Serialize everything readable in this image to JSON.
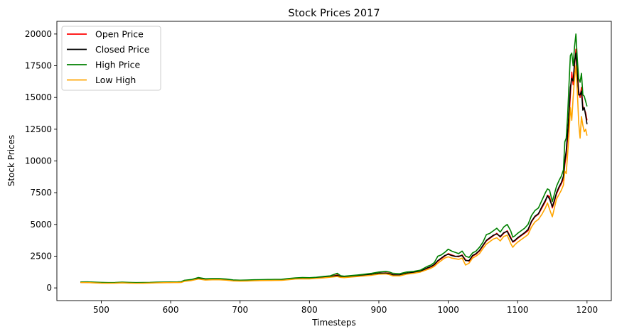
{
  "chart_data": {
    "type": "line",
    "title": "Stock Prices 2017",
    "xlabel": "Timesteps",
    "ylabel": "Stock Prices",
    "xlim": [
      436,
      1235
    ],
    "ylim": [
      -1000,
      21000
    ],
    "xticks": [
      500,
      600,
      700,
      800,
      900,
      1000,
      1100,
      1200
    ],
    "yticks": [
      0,
      2500,
      5000,
      7500,
      10000,
      12500,
      15000,
      17500,
      20000
    ],
    "grid": false,
    "legend_position": "upper-left",
    "x": [
      470,
      480,
      490,
      500,
      510,
      520,
      530,
      540,
      550,
      560,
      570,
      580,
      590,
      600,
      610,
      615,
      620,
      630,
      640,
      650,
      660,
      670,
      680,
      690,
      700,
      710,
      720,
      730,
      740,
      750,
      760,
      770,
      780,
      790,
      800,
      810,
      820,
      830,
      840,
      845,
      850,
      860,
      870,
      880,
      890,
      900,
      910,
      915,
      920,
      930,
      940,
      950,
      960,
      970,
      975,
      980,
      985,
      990,
      995,
      1000,
      1005,
      1010,
      1015,
      1020,
      1025,
      1030,
      1035,
      1040,
      1045,
      1050,
      1055,
      1060,
      1065,
      1070,
      1075,
      1080,
      1085,
      1090,
      1093,
      1096,
      1100,
      1105,
      1110,
      1115,
      1120,
      1125,
      1130,
      1135,
      1140,
      1143,
      1146,
      1150,
      1153,
      1156,
      1160,
      1163,
      1166,
      1168,
      1170,
      1172,
      1174,
      1176,
      1178,
      1180,
      1182,
      1184,
      1186,
      1188,
      1190,
      1192,
      1194,
      1196,
      1198,
      1200
    ],
    "series": [
      {
        "name": "Open Price",
        "color": "#ff0000",
        "values": [
          440,
          445,
          420,
          400,
          390,
          395,
          420,
          400,
          390,
          390,
          400,
          420,
          430,
          440,
          445,
          450,
          550,
          610,
          760,
          650,
          670,
          680,
          650,
          580,
          560,
          570,
          590,
          600,
          610,
          615,
          620,
          680,
          730,
          760,
          740,
          780,
          830,
          880,
          1020,
          900,
          850,
          900,
          950,
          1000,
          1050,
          1150,
          1180,
          1150,
          1050,
          1000,
          1150,
          1200,
          1300,
          1550,
          1650,
          1800,
          2100,
          2300,
          2500,
          2700,
          2600,
          2500,
          2450,
          2600,
          2200,
          2100,
          2500,
          2650,
          2900,
          3300,
          3700,
          3900,
          4100,
          4300,
          4000,
          4300,
          4500,
          4000,
          3600,
          3700,
          3900,
          4100,
          4300,
          4500,
          5200,
          5600,
          5800,
          6300,
          6800,
          7300,
          7200,
          6300,
          6800,
          7400,
          7900,
          8200,
          8600,
          9700,
          10500,
          11800,
          13200,
          15200,
          17000,
          16000,
          17500,
          18800,
          17200,
          15500,
          15000,
          15800,
          14300,
          14100,
          13800,
          13200
        ]
      },
      {
        "name": "Closed Price",
        "color": "#000000",
        "values": [
          445,
          440,
          415,
          395,
          390,
          400,
          415,
          395,
          390,
          395,
          405,
          425,
          435,
          440,
          450,
          455,
          560,
          620,
          740,
          660,
          675,
          675,
          640,
          575,
          565,
          575,
          595,
          605,
          612,
          618,
          625,
          690,
          740,
          750,
          745,
          790,
          840,
          890,
          980,
          880,
          860,
          910,
          960,
          1010,
          1060,
          1160,
          1170,
          1120,
          1030,
          1020,
          1160,
          1220,
          1320,
          1580,
          1680,
          1850,
          2150,
          2350,
          2550,
          2650,
          2550,
          2480,
          2500,
          2550,
          2150,
          2150,
          2550,
          2700,
          2950,
          3350,
          3750,
          3950,
          4150,
          4250,
          4050,
          4350,
          4450,
          3900,
          3650,
          3750,
          3950,
          4150,
          4350,
          4600,
          5250,
          5650,
          5850,
          6400,
          6900,
          7250,
          7000,
          6400,
          6900,
          7500,
          8000,
          8300,
          8800,
          10000,
          10800,
          12200,
          13800,
          15800,
          16500,
          16300,
          17800,
          18500,
          16800,
          15200,
          15200,
          15500,
          14000,
          14200,
          13600,
          12900
        ]
      },
      {
        "name": "High Price",
        "color": "#008000",
        "values": [
          470,
          475,
          450,
          430,
          420,
          425,
          450,
          430,
          420,
          425,
          430,
          450,
          460,
          470,
          475,
          490,
          600,
          660,
          820,
          720,
          730,
          730,
          700,
          630,
          610,
          620,
          640,
          650,
          660,
          670,
          680,
          740,
          790,
          820,
          800,
          840,
          900,
          950,
          1150,
          960,
          920,
          970,
          1020,
          1080,
          1150,
          1250,
          1300,
          1250,
          1150,
          1120,
          1250,
          1300,
          1400,
          1700,
          1800,
          2000,
          2500,
          2600,
          2800,
          3050,
          2900,
          2800,
          2700,
          2900,
          2500,
          2400,
          2750,
          2900,
          3200,
          3600,
          4200,
          4300,
          4500,
          4700,
          4400,
          4800,
          5000,
          4500,
          4000,
          4100,
          4300,
          4500,
          4700,
          5000,
          5700,
          6100,
          6300,
          6900,
          7500,
          7800,
          7700,
          6800,
          7400,
          8000,
          8500,
          8800,
          9300,
          11500,
          11800,
          13500,
          16000,
          18300,
          18500,
          17500,
          19000,
          20000,
          18000,
          16500,
          16200,
          16900,
          15200,
          15100,
          14700,
          14300
        ]
      },
      {
        "name": "Low High",
        "color": "#ffa500",
        "values": [
          420,
          420,
          395,
          375,
          370,
          375,
          395,
          375,
          365,
          370,
          380,
          400,
          410,
          420,
          425,
          430,
          520,
          580,
          700,
          620,
          640,
          640,
          610,
          550,
          535,
          545,
          565,
          575,
          585,
          590,
          595,
          650,
          700,
          720,
          710,
          750,
          790,
          840,
          900,
          830,
          810,
          860,
          900,
          950,
          1000,
          1080,
          1100,
          1050,
          950,
          950,
          1080,
          1150,
          1250,
          1450,
          1550,
          1700,
          1950,
          2150,
          2350,
          2450,
          2350,
          2300,
          2250,
          2350,
          1800,
          1950,
          2350,
          2500,
          2700,
          3100,
          3450,
          3650,
          3850,
          3950,
          3700,
          4050,
          4150,
          3500,
          3200,
          3400,
          3600,
          3800,
          4000,
          4200,
          4800,
          5200,
          5400,
          5800,
          6300,
          6700,
          6200,
          5600,
          6300,
          7000,
          7400,
          7700,
          8100,
          9200,
          9000,
          10500,
          12000,
          14200,
          13200,
          15000,
          16500,
          17500,
          15500,
          13000,
          11800,
          13500,
          12800,
          12300,
          12500,
          12000
        ]
      }
    ]
  }
}
